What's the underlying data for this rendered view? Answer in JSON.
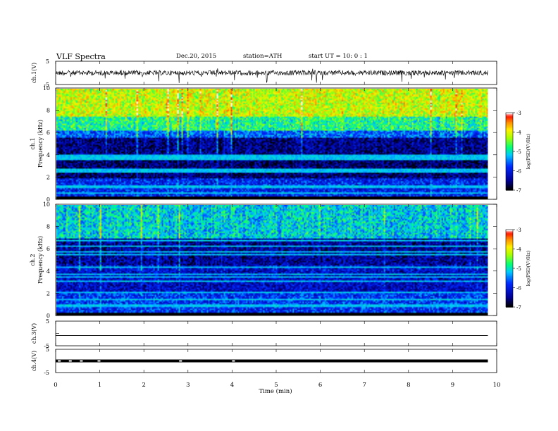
{
  "header": {
    "title": "VLF  Spectra",
    "date": "Dec.20, 2015",
    "station": "station=ATH",
    "start": "start  UT  =     10: 0   : 1"
  },
  "chart_data": [
    {
      "type": "line",
      "panel": "ch1-waveform",
      "ylabel": "ch.1(V)",
      "yticks": [
        "5",
        "-5"
      ],
      "ylim": [
        -5,
        5
      ],
      "xlim": [
        0,
        10
      ],
      "data_extent_min": [
        0,
        9.8
      ],
      "approx_level": 0,
      "series_color": "#000000"
    },
    {
      "type": "heatmap",
      "panel": "ch1-spectrogram",
      "ylabel": "ch.1 Frequency  (kHz)",
      "ylabel_line1": "ch.1",
      "ylabel_line2": "Frequency  (kHz)",
      "yticks": [
        "0",
        "2",
        "4",
        "6",
        "8",
        "10"
      ],
      "ylim": [
        0,
        10
      ],
      "xlim": [
        0,
        10
      ],
      "data_extent_min": [
        0,
        9.8
      ],
      "colorbar": {
        "label": "log(PSD(V²/Hz)",
        "ticks": [
          "-3",
          "-4",
          "-5",
          "-6",
          "-7"
        ],
        "range": [
          -7,
          -3
        ]
      },
      "approx_bands_kHz_log_psd": [
        {
          "f": [
            0,
            1.8
          ],
          "v": -6.0
        },
        {
          "f": [
            1.8,
            5.6
          ],
          "v": -6.7
        },
        {
          "f": [
            5.6,
            6.2
          ],
          "v": -5.8
        },
        {
          "f": [
            6.2,
            7.5
          ],
          "v": -5.0
        },
        {
          "f": [
            7.5,
            10
          ],
          "v": -4.3
        }
      ]
    },
    {
      "type": "heatmap",
      "panel": "ch2-spectrogram",
      "ylabel": "ch.2 Frequency  (kHz)",
      "ylabel_line1": "ch.2",
      "ylabel_line2": "Frequency  (kHz)",
      "yticks": [
        "0",
        "2",
        "4",
        "6",
        "8",
        "10"
      ],
      "ylim": [
        0,
        10
      ],
      "xlim": [
        0,
        10
      ],
      "data_extent_min": [
        0,
        9.8
      ],
      "colorbar": {
        "label": "log(PSD(V²/Hz)",
        "ticks": [
          "-3",
          "-4",
          "-5",
          "-6",
          "-7"
        ],
        "range": [
          -7,
          -3
        ]
      },
      "approx_bands_kHz_log_psd": [
        {
          "f": [
            0,
            2.0
          ],
          "v": -5.9
        },
        {
          "f": [
            2.0,
            4.5
          ],
          "v": -6.3
        },
        {
          "f": [
            4.5,
            7.0
          ],
          "v": -6.6
        },
        {
          "f": [
            7.0,
            10
          ],
          "v": -5.3
        }
      ]
    },
    {
      "type": "line",
      "panel": "ch3-waveform",
      "ylabel": "ch.3(V)",
      "yticks": [
        "5",
        "-5"
      ],
      "ylim": [
        -5,
        5
      ],
      "xlim": [
        0,
        10
      ],
      "data_extent_min": [
        0,
        9.8
      ],
      "approx_level": 0
    },
    {
      "type": "line",
      "panel": "ch4-waveform",
      "ylabel": "ch.4(V)",
      "yticks": [
        "5",
        "-5"
      ],
      "ylim": [
        -5,
        5
      ],
      "xlim": [
        0,
        10
      ],
      "data_extent_min": [
        0,
        9.8
      ],
      "approx_level": 0
    }
  ],
  "xaxis": {
    "label": "Time  (min)",
    "ticks": [
      "0",
      "1",
      "2",
      "3",
      "4",
      "5",
      "6",
      "7",
      "8",
      "9",
      "10"
    ]
  },
  "colors": {
    "background": "#ffffff",
    "axes": "#000000",
    "colormap": [
      "#000000",
      "#0000a0",
      "#0030ff",
      "#00c8ff",
      "#00ff80",
      "#b4ff00",
      "#ffff00",
      "#ffa000",
      "#ff2000",
      "#ffffff"
    ]
  }
}
